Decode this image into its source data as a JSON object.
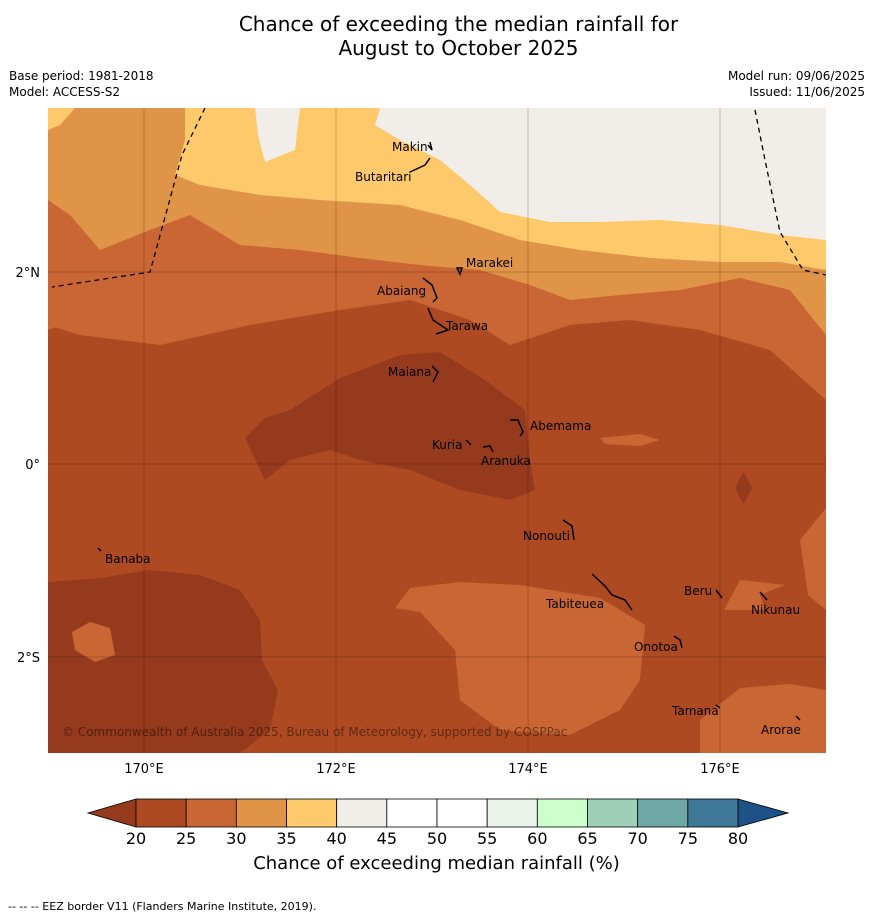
{
  "title": {
    "line1": "Chance of exceeding the median rainfall for",
    "line2": "August to October 2025"
  },
  "meta": {
    "base_period": "Base period: 1981-2018",
    "model": "Model: ACCESS-S2",
    "model_run": "Model run: 09/06/2025",
    "issued": "Issued: 11/06/2025"
  },
  "axes": {
    "lat_labels": [
      "2°N",
      "0°",
      "2°S"
    ],
    "lon_labels": [
      "170°E",
      "172°E",
      "174°E",
      "176°E"
    ]
  },
  "places": [
    "Makin",
    "Butaritari",
    "Marakei",
    "Abaiang",
    "Tarawa",
    "Maiana",
    "Abemama",
    "Kuria",
    "Aranuka",
    "Nonouti",
    "Banaba",
    "Beru",
    "Nikunau",
    "Tabiteuea",
    "Onotoa",
    "Tamana",
    "Arorae"
  ],
  "copyright": "© Commonwealth of Australia 2025, Bureau of Meteorology, supported by COSPPac",
  "colorbar": {
    "ticks": [
      "20",
      "25",
      "30",
      "35",
      "40",
      "45",
      "50",
      "55",
      "60",
      "65",
      "70",
      "75",
      "80"
    ],
    "colors": [
      "#ad4a22",
      "#ca6634",
      "#e09448",
      "#fec96a",
      "#f1ede8",
      "#ffffff",
      "#ffffff",
      "#eaf4ea",
      "#ccffcc",
      "#9dd0b7",
      "#6fa7a7",
      "#3f7898"
    ],
    "under_color": "#963a1e",
    "over_color": "#1d5187",
    "label": "Chance of exceeding median rainfall (%)"
  },
  "footer": "--  --  -- EEZ border V11 (Flanders Marine Institute, 2019)."
}
